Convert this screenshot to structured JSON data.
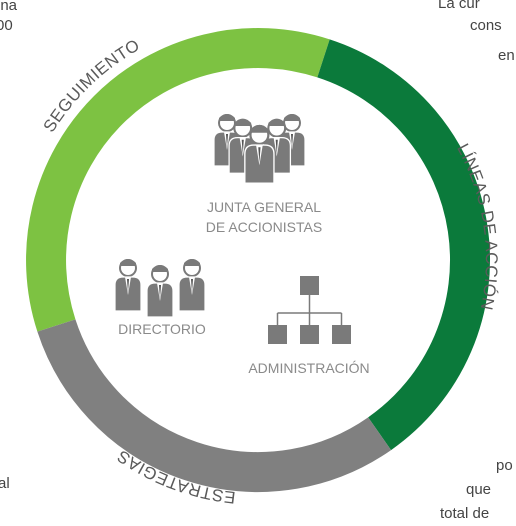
{
  "ring": {
    "segments": [
      "SEGUIMIENTO",
      "LÍNEAS DE ACCIÓN",
      "ESTRATEGIAS"
    ]
  },
  "center": {
    "junta": [
      "JUNTA GENERAL",
      "DE ACCIONISTAS"
    ],
    "directorio": "DIRECTORIO",
    "administracion": "ADMINISTRACIÓN"
  },
  "fragments": {
    "top_left": [
      "una",
      "00"
    ],
    "top_right": [
      "La cur",
      "cons",
      "en"
    ],
    "bottom_left": [
      "al"
    ],
    "bottom_right": [
      "po",
      "que",
      "total de"
    ]
  }
}
